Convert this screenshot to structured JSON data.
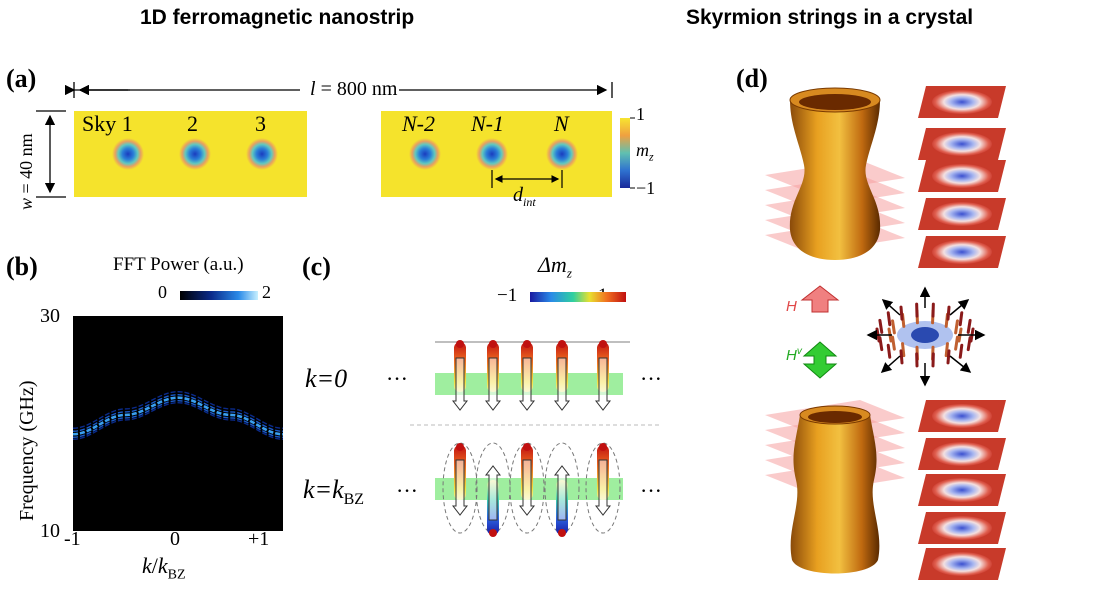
{
  "headings": {
    "left": "1D ferromagnetic nanostrip",
    "right": "Skyrmion strings in a crystal"
  },
  "panel_a": {
    "letter": "(a)",
    "length_label_var": "l",
    "length_label_rest": " = 800 nm",
    "width_label_var": "w",
    "width_label_rest": " = 40 nm",
    "skyrmion_labels_left": [
      "Sky 1",
      "2",
      "3"
    ],
    "skyrmion_labels_right": [
      "N-2",
      "N-1",
      "N"
    ],
    "spacing_label_var": "d",
    "spacing_label_sub": "int",
    "colorbar": {
      "max": "1",
      "min": "−1",
      "label_var": "m",
      "label_sub": "z"
    },
    "strip_color": "#f5e32c"
  },
  "panel_b": {
    "letter": "(b)",
    "colorbar_title": "FFT Power (a.u.)",
    "colorbar_min": "0",
    "colorbar_max": "2",
    "ylabel": "Frequency (GHz)",
    "y_ticks": [
      "30",
      "10"
    ],
    "x_ticks": [
      "-1",
      "0",
      "+1"
    ],
    "xlabel_var": "k",
    "xlabel_mid": "/",
    "xlabel_var2": "k",
    "xlabel_sub": "BZ",
    "chart_data": {
      "type": "heatmap",
      "xlim": [
        -1,
        1
      ],
      "ylim": [
        10,
        30
      ],
      "band_center": {
        "x": [
          -1,
          -0.5,
          0,
          0.5,
          1
        ],
        "y": [
          19.0,
          20.8,
          22.4,
          20.8,
          19.0
        ]
      }
    }
  },
  "panel_c": {
    "letter": "(c)",
    "colorbar_var": "Δm",
    "colorbar_sub": "z",
    "colorbar_min": "−1",
    "colorbar_max": "1",
    "row1_label": "k=0",
    "row2_label_var": "k=k",
    "row2_label_sub": "BZ",
    "ellipsis": "···"
  },
  "panel_d": {
    "letter": "(d)",
    "field_label": "H",
    "field_label2": "H",
    "field_label2_sup": "v",
    "field_color": "#e04848",
    "field2_color": "#22aa22"
  }
}
